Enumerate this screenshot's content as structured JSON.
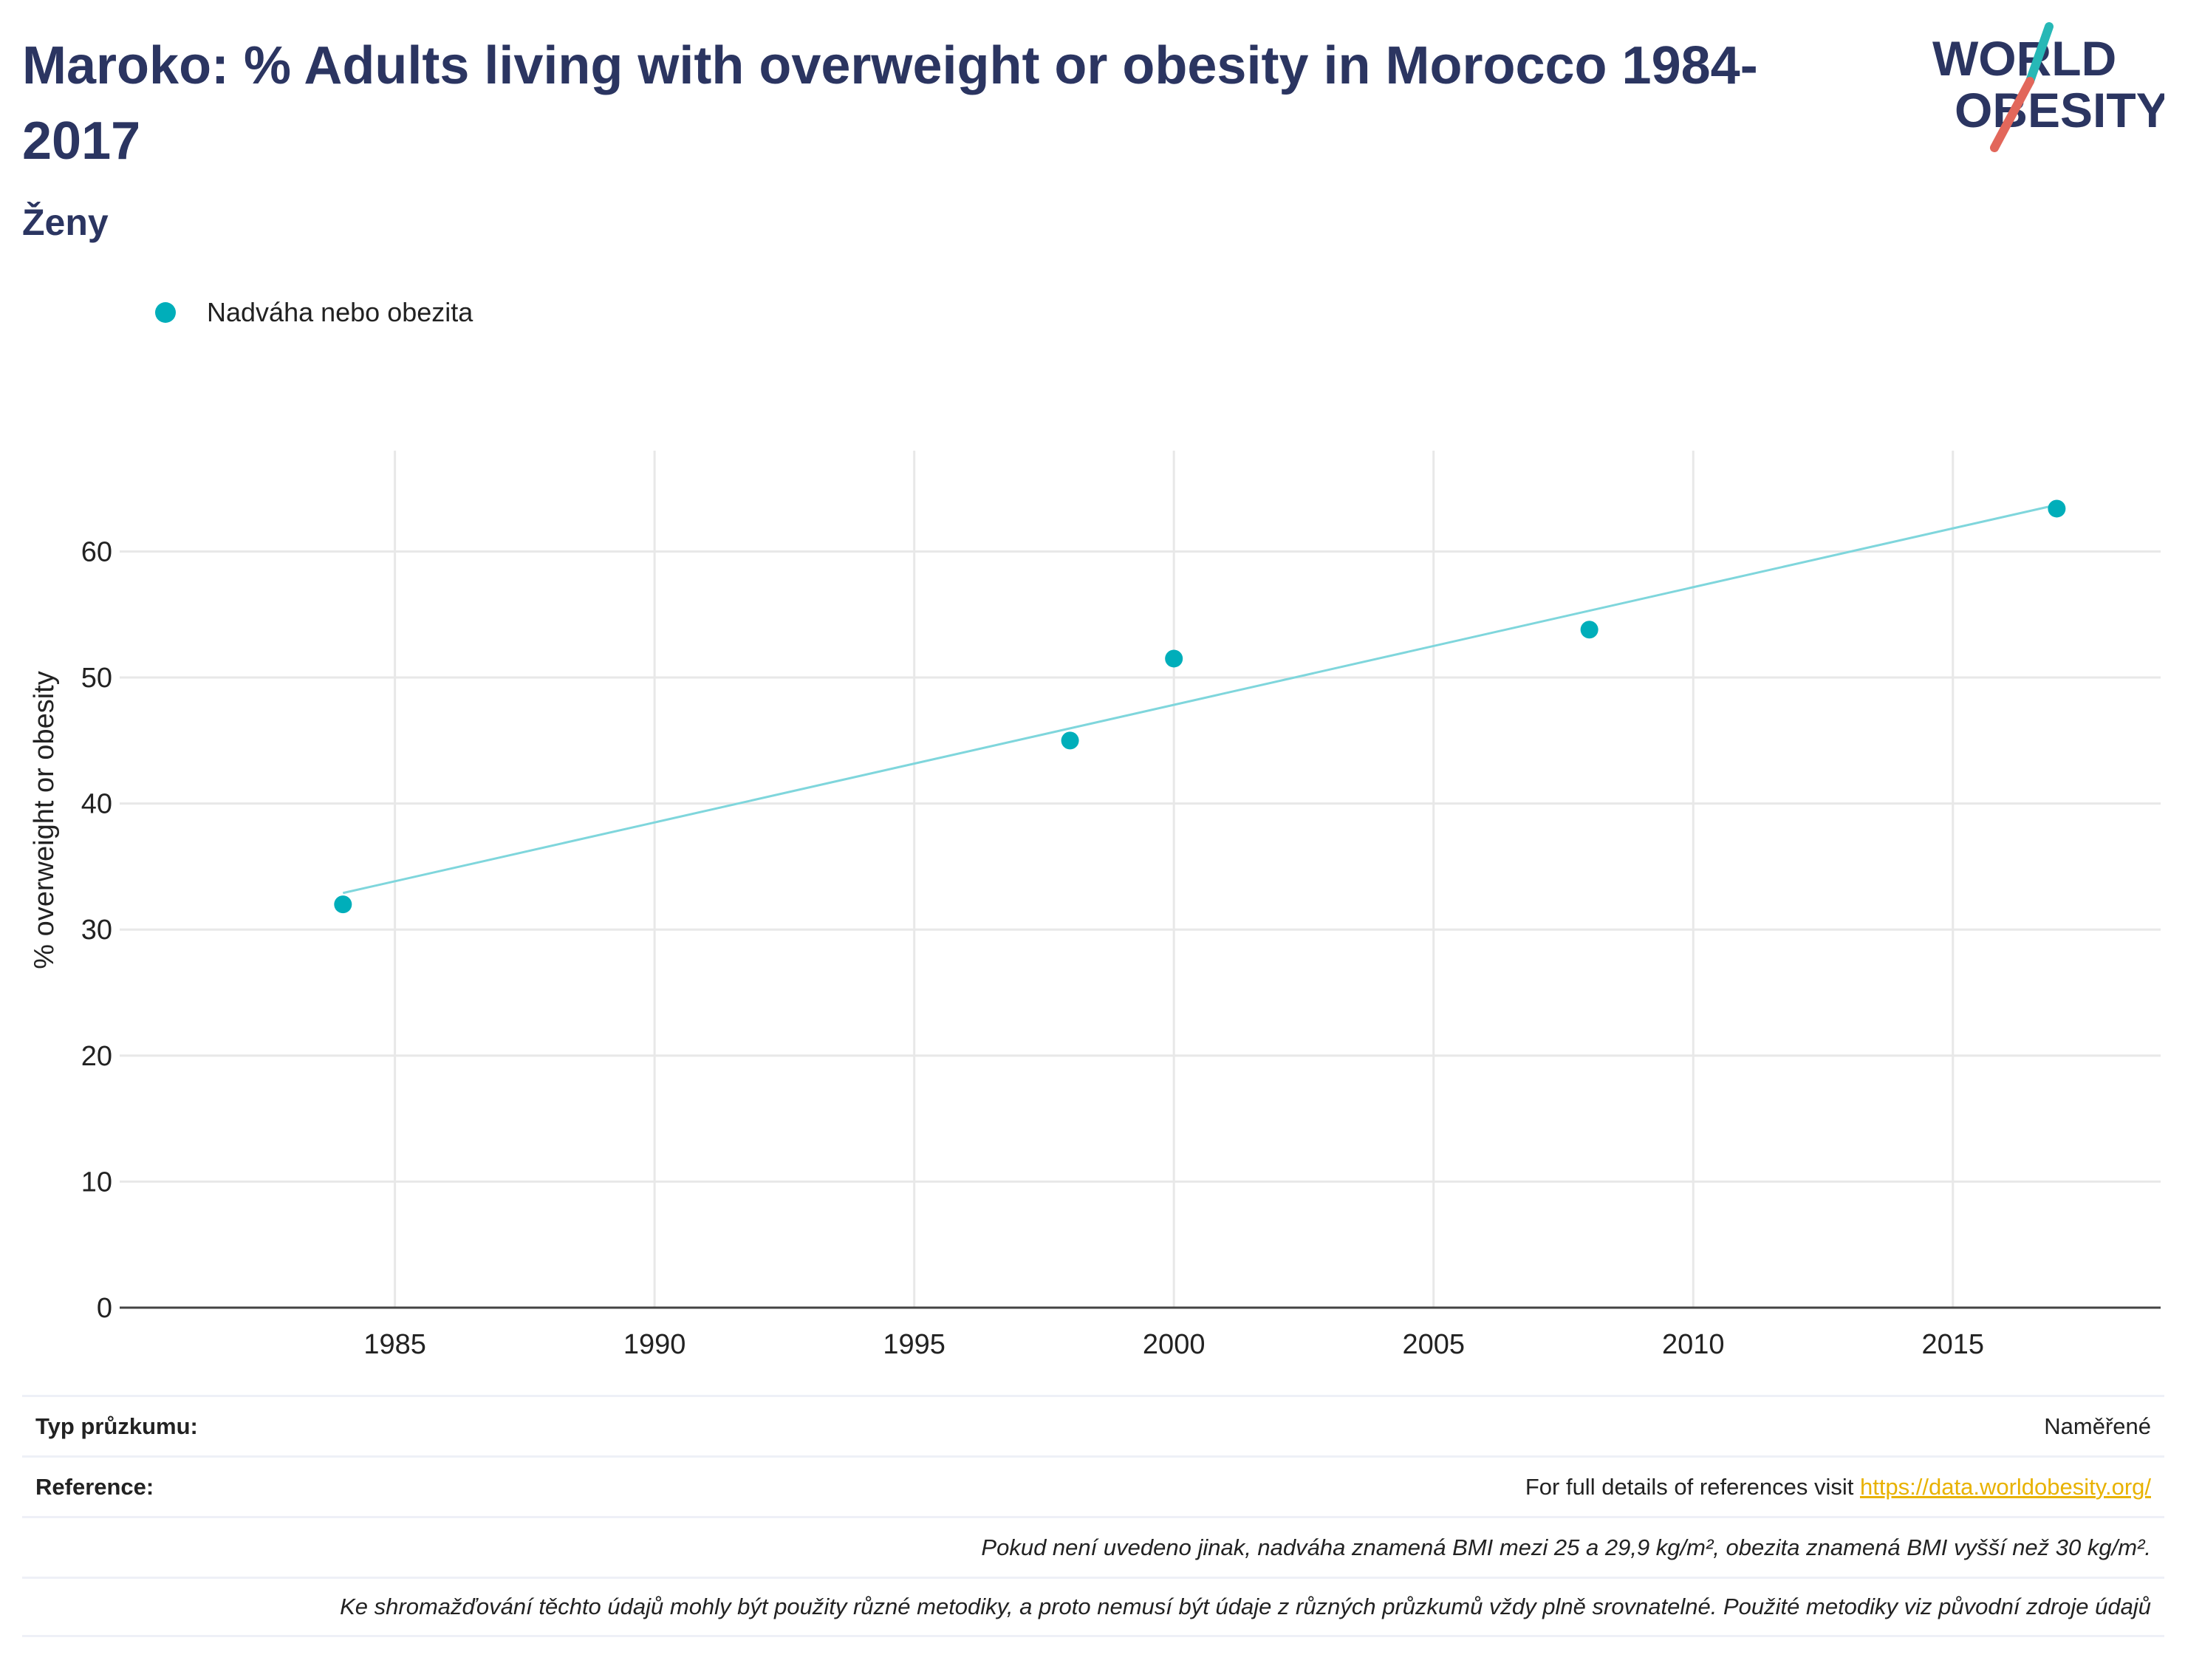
{
  "header": {
    "title": "Maroko: % Adults living with overweight or obesity in Morocco 1984-2017",
    "subtitle": "Ženy"
  },
  "logo": {
    "line1": "WORLD",
    "line2": "OBESITY",
    "accent_teal": "#27b8b6",
    "accent_red": "#e2675b",
    "text_color": "#2b3561"
  },
  "legend": {
    "label": "Nadváha nebo obezita",
    "color": "#00aeba"
  },
  "chart_data": {
    "type": "scatter",
    "ylabel": "% overweight or obesity",
    "xlabel": "",
    "xlim": [
      1979.7,
      2019
    ],
    "ylim": [
      0,
      68
    ],
    "xticks": [
      1985,
      1990,
      1995,
      2000,
      2005,
      2010,
      2015
    ],
    "yticks": [
      0,
      10,
      20,
      30,
      40,
      50,
      60
    ],
    "grid": true,
    "legend_position": "top-left",
    "series": [
      {
        "name": "Nadváha nebo obezita",
        "color": "#00aeba",
        "points": [
          {
            "x": 1984,
            "y": 32.0
          },
          {
            "x": 1998,
            "y": 45.0
          },
          {
            "x": 2000,
            "y": 51.5
          },
          {
            "x": 2008,
            "y": 53.8
          },
          {
            "x": 2017,
            "y": 63.4
          }
        ]
      }
    ],
    "trendline": {
      "color": "#7fd6dc",
      "start": {
        "x": 1984,
        "y": 32.9
      },
      "end": {
        "x": 2017,
        "y": 63.7
      }
    }
  },
  "footer": {
    "survey_type_label": "Typ průzkumu:",
    "survey_type_value": "Naměřené",
    "reference_label": "Reference:",
    "reference_text": "For full details of references visit ",
    "reference_link": "https://data.worldobesity.org/",
    "note1": "Pokud není uvedeno jinak, nadváha znamená BMI mezi 25 a 29,9 kg/m², obezita znamená BMI vyšší než 30 kg/m².",
    "note2": "Ke shromažďování těchto údajů mohly být použity různé metodiky, a proto nemusí být údaje z různých průzkumů vždy plně srovnatelné. Použité metodiky viz původní zdroje údajů"
  }
}
